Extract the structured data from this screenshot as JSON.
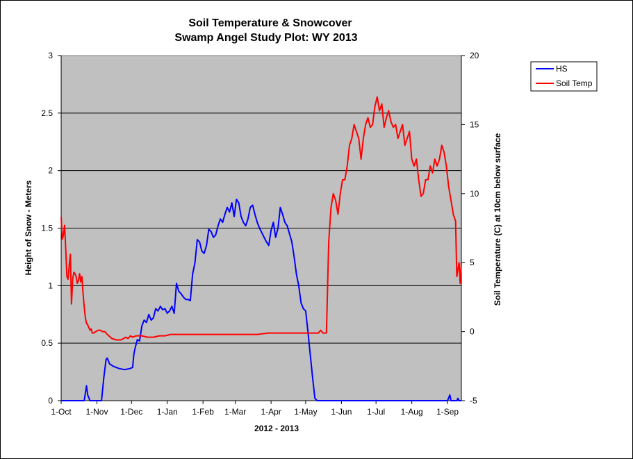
{
  "chart_data": {
    "type": "line",
    "title": [
      "Soil Temperature & Snowcover",
      "Swamp Angel Study Plot: WY 2013"
    ],
    "xlabel": "2012 - 2013",
    "ylabel_left": "Height of Snow - Meters",
    "ylabel_right": "Soil Temperature (C) at 10cm below surface",
    "x_ticks": [
      "1-Oct",
      "1-Nov",
      "1-Dec",
      "1-Jan",
      "1-Feb",
      "1-Mar",
      "1-Apr",
      "1-May",
      "1-Jun",
      "1-Jul",
      "1-Aug",
      "1-Sep"
    ],
    "x_tick_days": [
      0,
      31,
      61,
      92,
      123,
      151,
      182,
      212,
      243,
      273,
      304,
      335
    ],
    "xlim_days": [
      0,
      347
    ],
    "y_left_ticks": [
      "0",
      "0.5",
      "1",
      "1.5",
      "2",
      "2.5",
      "3"
    ],
    "y_left_lim": [
      0,
      3
    ],
    "y_right_ticks": [
      "-5",
      "0",
      "5",
      "10",
      "15",
      "20"
    ],
    "y_right_lim": [
      -5,
      20
    ],
    "gridlines": "horizontal",
    "plot_background": "#c0c0c0",
    "legend_position": "top-right",
    "series": [
      {
        "name": "HS",
        "axis": "left",
        "color": "#0000ff",
        "x": [
          0,
          20,
          22,
          23,
          25,
          35,
          37,
          39,
          40,
          42,
          45,
          50,
          55,
          60,
          62,
          63,
          64,
          66,
          68,
          70,
          72,
          74,
          76,
          78,
          80,
          82,
          84,
          86,
          88,
          90,
          92,
          94,
          96,
          98,
          100,
          102,
          104,
          106,
          108,
          110,
          112,
          114,
          116,
          118,
          120,
          122,
          124,
          126,
          128,
          130,
          132,
          134,
          136,
          138,
          140,
          142,
          144,
          146,
          148,
          150,
          152,
          154,
          156,
          158,
          160,
          162,
          164,
          166,
          168,
          170,
          172,
          174,
          176,
          178,
          180,
          182,
          184,
          186,
          188,
          190,
          192,
          194,
          196,
          198,
          200,
          202,
          204,
          206,
          208,
          210,
          212,
          214,
          216,
          218,
          220,
          222,
          224,
          226,
          228,
          230,
          232,
          234,
          236,
          238,
          240,
          245,
          255,
          265,
          275,
          285,
          295,
          305,
          315,
          325,
          334,
          335,
          337,
          338,
          340,
          342,
          343,
          344,
          345,
          346,
          347
        ],
        "values": [
          0,
          0,
          0.13,
          0.05,
          0,
          0,
          0.2,
          0.36,
          0.37,
          0.32,
          0.3,
          0.28,
          0.27,
          0.28,
          0.29,
          0.4,
          0.45,
          0.53,
          0.52,
          0.65,
          0.7,
          0.68,
          0.75,
          0.7,
          0.72,
          0.8,
          0.78,
          0.82,
          0.79,
          0.8,
          0.76,
          0.78,
          0.82,
          0.76,
          1.02,
          0.95,
          0.93,
          0.9,
          0.88,
          0.88,
          0.87,
          1.1,
          1.2,
          1.4,
          1.38,
          1.3,
          1.28,
          1.35,
          1.49,
          1.47,
          1.42,
          1.44,
          1.52,
          1.58,
          1.55,
          1.62,
          1.68,
          1.64,
          1.72,
          1.6,
          1.75,
          1.72,
          1.6,
          1.55,
          1.52,
          1.58,
          1.68,
          1.7,
          1.62,
          1.55,
          1.5,
          1.46,
          1.42,
          1.38,
          1.35,
          1.48,
          1.55,
          1.42,
          1.5,
          1.68,
          1.62,
          1.55,
          1.52,
          1.45,
          1.38,
          1.25,
          1.1,
          1.0,
          0.85,
          0.8,
          0.78,
          0.6,
          0.4,
          0.2,
          0.02,
          0,
          0,
          0,
          0,
          0,
          0,
          0,
          0,
          0,
          0,
          0,
          0,
          0,
          0,
          0,
          0,
          0,
          0,
          0,
          0,
          0,
          0.05,
          0,
          0,
          0,
          0,
          0.02,
          0,
          0,
          0
        ]
      },
      {
        "name": "Soil Temp",
        "axis": "right",
        "color": "#ff0000",
        "x": [
          0,
          1,
          2,
          3,
          4,
          5,
          6,
          7,
          8,
          9,
          10,
          11,
          12,
          13,
          14,
          15,
          16,
          17,
          18,
          19,
          20,
          21,
          22,
          23,
          24,
          25,
          26,
          27,
          28,
          30,
          32,
          34,
          36,
          38,
          40,
          44,
          48,
          52,
          56,
          58,
          60,
          62,
          65,
          70,
          75,
          80,
          85,
          90,
          95,
          100,
          105,
          110,
          115,
          120,
          125,
          130,
          140,
          150,
          160,
          170,
          180,
          190,
          200,
          205,
          210,
          215,
          220,
          222,
          223,
          224,
          225,
          226,
          227,
          228,
          229,
          230,
          232,
          234,
          236,
          238,
          240,
          242,
          244,
          246,
          248,
          250,
          252,
          254,
          256,
          258,
          260,
          262,
          264,
          266,
          268,
          270,
          272,
          274,
          276,
          278,
          280,
          282,
          284,
          286,
          288,
          290,
          292,
          294,
          296,
          298,
          300,
          302,
          304,
          306,
          308,
          310,
          312,
          314,
          316,
          318,
          320,
          322,
          324,
          326,
          328,
          330,
          332,
          334,
          336,
          338,
          340,
          342,
          343,
          344,
          345,
          346,
          347
        ],
        "values": [
          8.3,
          6.7,
          7.0,
          7.7,
          6.0,
          4.0,
          3.8,
          4.8,
          5.6,
          2.0,
          3.8,
          4.3,
          4.2,
          4.0,
          3.5,
          3.7,
          4.2,
          3.6,
          4.0,
          2.8,
          1.8,
          1.0,
          0.6,
          0.5,
          0.3,
          0.1,
          0.2,
          -0.1,
          -0.1,
          0.0,
          0.1,
          0.1,
          0.0,
          0.0,
          -0.2,
          -0.5,
          -0.6,
          -0.6,
          -0.4,
          -0.5,
          -0.3,
          -0.4,
          -0.3,
          -0.3,
          -0.4,
          -0.4,
          -0.3,
          -0.3,
          -0.2,
          -0.2,
          -0.2,
          -0.2,
          -0.2,
          -0.2,
          -0.2,
          -0.2,
          -0.2,
          -0.2,
          -0.2,
          -0.2,
          -0.1,
          -0.1,
          -0.1,
          -0.1,
          -0.1,
          -0.1,
          -0.1,
          -0.1,
          -0.1,
          0,
          0.1,
          0,
          -0.1,
          -0.1,
          -0.1,
          -0.1,
          6.5,
          9.0,
          10.0,
          9.5,
          8.5,
          10.0,
          11.0,
          11.0,
          12.0,
          13.5,
          14.0,
          15.0,
          14.5,
          14.0,
          12.5,
          14.0,
          15.0,
          15.5,
          14.8,
          15.0,
          16.3,
          17.0,
          16.0,
          16.5,
          14.8,
          15.5,
          16.0,
          15.2,
          14.8,
          15.0,
          14.0,
          14.5,
          15.0,
          13.5,
          14.0,
          14.5,
          12.5,
          12.0,
          12.5,
          11.0,
          9.8,
          10.0,
          11.0,
          11.0,
          12.0,
          11.5,
          12.5,
          12.0,
          12.5,
          13.5,
          13.0,
          12.0,
          10.5,
          9.5,
          8.5,
          8.0,
          4.0,
          4.5,
          5.0,
          3.5,
          5.0
        ]
      }
    ]
  }
}
